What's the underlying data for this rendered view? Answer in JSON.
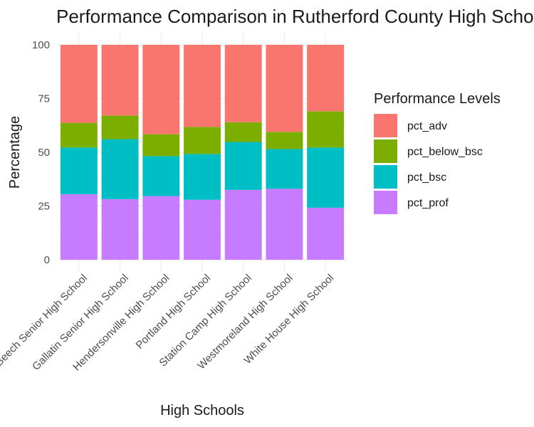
{
  "chart_data": {
    "type": "bar",
    "stacked": true,
    "title": "Performance Comparison in Rutherford County High Schools",
    "xlabel": "High Schools",
    "ylabel": "Percentage",
    "ylim": [
      0,
      100
    ],
    "yticks": [
      0,
      25,
      50,
      75,
      100
    ],
    "grid": true,
    "legend": {
      "title": "Performance Levels",
      "position": "right"
    },
    "categories": [
      "Beech Senior High School",
      "Gallatin Senior High School",
      "Hendersonville High School",
      "Portland High School",
      "Station Camp High School",
      "Westmoreland High School",
      "White House High School"
    ],
    "series": [
      {
        "name": "pct_prof",
        "color": "#C77CFF",
        "values": [
          30.5,
          28.2,
          29.6,
          27.9,
          32.5,
          33.0,
          24.2
        ]
      },
      {
        "name": "pct_bsc",
        "color": "#00BFC4",
        "values": [
          21.7,
          27.9,
          18.6,
          21.3,
          22.3,
          18.5,
          28.0
        ]
      },
      {
        "name": "pct_below_bsc",
        "color": "#7CAE00",
        "values": [
          11.5,
          11.0,
          10.2,
          12.6,
          9.2,
          8.0,
          16.9
        ]
      },
      {
        "name": "pct_adv",
        "color": "#F8766D",
        "values": [
          36.3,
          32.9,
          41.6,
          38.2,
          36.0,
          40.5,
          30.9
        ]
      }
    ],
    "legend_order": [
      "pct_adv",
      "pct_below_bsc",
      "pct_bsc",
      "pct_prof"
    ]
  }
}
